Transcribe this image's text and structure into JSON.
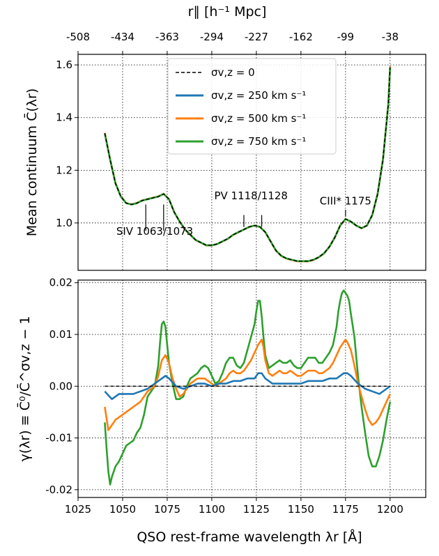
{
  "chart_data": [
    {
      "type": "line",
      "id": "top",
      "ylabel": "Mean continuum C̄(λr)",
      "top_xlabel": "r∥ [h⁻¹ Mpc]",
      "xlim": [
        1025,
        1220
      ],
      "ylim": [
        0.82,
        1.64
      ],
      "yticks": [
        1.0,
        1.2,
        1.4,
        1.6
      ],
      "ytick_labels": [
        "1.0",
        "1.2",
        "1.4",
        "1.6"
      ],
      "top_ticks": [
        1025,
        1050,
        1075,
        1100,
        1125,
        1150,
        1175,
        1200
      ],
      "top_tick_labels": [
        "-508",
        "-434",
        "-363",
        "-294",
        "-227",
        "-162",
        "-99",
        "-38"
      ],
      "grid": true,
      "legend_position": "top-center",
      "legend": [
        {
          "label": "σv,z = 0",
          "color": "#000000",
          "dashed": true
        },
        {
          "label": "σv,z = 250 km s⁻¹",
          "color": "#1f77b4",
          "dashed": false
        },
        {
          "label": "σv,z = 500 km s⁻¹",
          "color": "#ff7f0e",
          "dashed": false
        },
        {
          "label": "σv,z = 750 km s⁻¹",
          "color": "#2ca02c",
          "dashed": false
        }
      ],
      "curve": {
        "x": [
          1040,
          1043,
          1046,
          1049,
          1052,
          1055,
          1058,
          1061,
          1064,
          1067,
          1070,
          1073,
          1076,
          1079,
          1082,
          1085,
          1088,
          1091,
          1094,
          1097,
          1100,
          1103,
          1106,
          1109,
          1112,
          1115,
          1118,
          1121,
          1124,
          1127,
          1130,
          1133,
          1136,
          1139,
          1142,
          1145,
          1148,
          1151,
          1154,
          1157,
          1160,
          1163,
          1166,
          1169,
          1172,
          1175,
          1178,
          1181,
          1184,
          1187,
          1190,
          1193,
          1196,
          1199,
          1200
        ],
        "y": [
          1.34,
          1.24,
          1.15,
          1.1,
          1.075,
          1.07,
          1.075,
          1.085,
          1.09,
          1.095,
          1.1,
          1.11,
          1.09,
          1.04,
          1.005,
          0.975,
          0.955,
          0.935,
          0.925,
          0.915,
          0.915,
          0.92,
          0.93,
          0.94,
          0.955,
          0.965,
          0.975,
          0.985,
          0.99,
          0.985,
          0.965,
          0.93,
          0.895,
          0.875,
          0.865,
          0.86,
          0.855,
          0.855,
          0.855,
          0.86,
          0.87,
          0.885,
          0.91,
          0.945,
          0.99,
          1.015,
          1.005,
          0.99,
          0.98,
          0.99,
          1.03,
          1.11,
          1.24,
          1.45,
          1.59
        ]
      },
      "series": [
        {
          "name": "σv,z = 0",
          "color": "#000000",
          "style": "dashed",
          "scale": 0.0
        },
        {
          "name": "σv,z = 250 km s⁻¹",
          "color": "#1f77b4",
          "style": "solid",
          "scale": 0.003
        },
        {
          "name": "σv,z = 500 km s⁻¹",
          "color": "#ff7f0e",
          "style": "solid",
          "scale": 0.006
        },
        {
          "name": "σv,z = 750 km s⁻¹",
          "color": "#2ca02c",
          "style": "solid",
          "scale": 0.0
        }
      ],
      "annotations": [
        {
          "text": "SIV 1063/1073",
          "x": [
            1063,
            1073
          ],
          "label_x": 1068,
          "label_y": 0.955,
          "line_y": [
            0.97,
            1.07
          ]
        },
        {
          "text": "PV 1118/1128",
          "x": [
            1118,
            1128
          ],
          "label_x": 1122,
          "label_y": 1.09,
          "line_y": [
            0.985,
            1.03
          ]
        },
        {
          "text": "CIII* 1175",
          "x": [
            1175
          ],
          "label_x": 1175,
          "label_y": 1.07,
          "line_y": [
            1.025,
            1.05
          ]
        }
      ]
    },
    {
      "type": "line",
      "id": "bottom",
      "ylabel": "γ(λr) ≡ C̄⁰/C̄^σv,z − 1",
      "xlabel": "QSO rest-frame wavelength λr [Å]",
      "xlim": [
        1025,
        1220
      ],
      "ylim": [
        -0.0215,
        0.0205
      ],
      "xticks": [
        1025,
        1050,
        1075,
        1100,
        1125,
        1150,
        1175,
        1200
      ],
      "xtick_labels": [
        "1025",
        "1050",
        "1075",
        "1100",
        "1125",
        "1150",
        "1175",
        "1200"
      ],
      "yticks": [
        -0.02,
        -0.01,
        0.0,
        0.01,
        0.02
      ],
      "ytick_labels": [
        "-0.02",
        "-0.01",
        "0.00",
        "0.01",
        "0.02"
      ],
      "grid": true,
      "series": [
        {
          "name": "σv,z = 0",
          "color": "#000000",
          "style": "dashed",
          "x": [
            1040,
            1200
          ],
          "y": [
            0.0,
            0.0
          ]
        },
        {
          "name": "σv,z = 750 km s⁻¹",
          "color": "#2ca02c",
          "style": "solid",
          "x": [
            1040,
            1041,
            1042,
            1043,
            1044,
            1046,
            1048,
            1050,
            1052,
            1054,
            1056,
            1058,
            1060,
            1062,
            1064,
            1066,
            1068,
            1070,
            1071,
            1072,
            1073,
            1074,
            1075,
            1076,
            1078,
            1080,
            1082,
            1084,
            1086,
            1088,
            1090,
            1092,
            1094,
            1096,
            1098,
            1100,
            1102,
            1104,
            1106,
            1108,
            1110,
            1112,
            1114,
            1116,
            1118,
            1120,
            1122,
            1124,
            1125,
            1126,
            1127,
            1128,
            1129,
            1130,
            1132,
            1134,
            1136,
            1138,
            1140,
            1142,
            1144,
            1146,
            1148,
            1150,
            1152,
            1154,
            1156,
            1158,
            1160,
            1162,
            1164,
            1166,
            1168,
            1170,
            1171,
            1172,
            1173,
            1174,
            1175,
            1176,
            1177,
            1178,
            1180,
            1182,
            1184,
            1186,
            1188,
            1190,
            1192,
            1194,
            1196,
            1198,
            1200
          ],
          "y": [
            -0.007,
            -0.012,
            -0.0165,
            -0.019,
            -0.0175,
            -0.0155,
            -0.0145,
            -0.013,
            -0.0115,
            -0.011,
            -0.0105,
            -0.009,
            -0.008,
            -0.0055,
            -0.002,
            -0.001,
            0.0,
            0.004,
            0.0085,
            0.012,
            0.0125,
            0.0115,
            0.008,
            0.0045,
            0.0005,
            -0.0025,
            -0.0025,
            -0.002,
            0.0,
            0.0015,
            0.002,
            0.0025,
            0.0035,
            0.004,
            0.0035,
            0.002,
            0.0005,
            0.001,
            0.0025,
            0.0045,
            0.0055,
            0.0055,
            0.004,
            0.0035,
            0.0045,
            0.007,
            0.0095,
            0.012,
            0.0145,
            0.0165,
            0.0165,
            0.0135,
            0.0095,
            0.006,
            0.0035,
            0.004,
            0.0045,
            0.005,
            0.0045,
            0.0045,
            0.005,
            0.004,
            0.0035,
            0.0035,
            0.0045,
            0.0055,
            0.0055,
            0.0055,
            0.0045,
            0.0045,
            0.0055,
            0.0065,
            0.008,
            0.0115,
            0.0145,
            0.0165,
            0.018,
            0.0185,
            0.018,
            0.0175,
            0.0165,
            0.014,
            0.0095,
            0.002,
            -0.004,
            -0.009,
            -0.0135,
            -0.0155,
            -0.0155,
            -0.0135,
            -0.0105,
            -0.0065,
            -0.003
          ]
        },
        {
          "name": "σv,z = 500 km s⁻¹",
          "color": "#ff7f0e",
          "style": "solid",
          "x": [
            1040,
            1042,
            1044,
            1046,
            1048,
            1050,
            1052,
            1054,
            1056,
            1058,
            1060,
            1062,
            1064,
            1066,
            1068,
            1070,
            1072,
            1074,
            1076,
            1078,
            1080,
            1082,
            1084,
            1086,
            1088,
            1090,
            1092,
            1094,
            1096,
            1098,
            1100,
            1102,
            1104,
            1106,
            1108,
            1110,
            1112,
            1114,
            1116,
            1118,
            1120,
            1122,
            1124,
            1126,
            1127,
            1128,
            1129,
            1130,
            1132,
            1134,
            1136,
            1138,
            1140,
            1142,
            1144,
            1146,
            1148,
            1150,
            1152,
            1154,
            1156,
            1158,
            1160,
            1162,
            1164,
            1166,
            1168,
            1170,
            1172,
            1174,
            1175,
            1176,
            1178,
            1180,
            1182,
            1184,
            1186,
            1188,
            1190,
            1192,
            1194,
            1196,
            1198,
            1200
          ],
          "y": [
            -0.004,
            -0.0085,
            -0.0075,
            -0.0065,
            -0.006,
            -0.0055,
            -0.005,
            -0.0045,
            -0.004,
            -0.0035,
            -0.003,
            -0.002,
            -0.001,
            -0.0005,
            0.0,
            0.002,
            0.005,
            0.006,
            0.0045,
            0.0015,
            -0.0005,
            -0.002,
            -0.0015,
            -0.0005,
            0.0005,
            0.001,
            0.0015,
            0.0015,
            0.0015,
            0.001,
            0.0005,
            0.0,
            0.0005,
            0.001,
            0.0015,
            0.0025,
            0.003,
            0.0025,
            0.0025,
            0.003,
            0.004,
            0.005,
            0.0065,
            0.008,
            0.0085,
            0.009,
            0.0075,
            0.005,
            0.0025,
            0.002,
            0.0025,
            0.003,
            0.0025,
            0.0025,
            0.003,
            0.0025,
            0.002,
            0.002,
            0.0025,
            0.003,
            0.003,
            0.003,
            0.0025,
            0.0025,
            0.003,
            0.0035,
            0.0045,
            0.006,
            0.0075,
            0.0085,
            0.009,
            0.0085,
            0.007,
            0.004,
            0.0005,
            -0.002,
            -0.0045,
            -0.0065,
            -0.0075,
            -0.007,
            -0.006,
            -0.0045,
            -0.003,
            -0.0015
          ]
        },
        {
          "name": "σv,z = 250 km s⁻¹",
          "color": "#1f77b4",
          "style": "solid",
          "x": [
            1040,
            1044,
            1048,
            1052,
            1056,
            1060,
            1064,
            1068,
            1072,
            1074,
            1076,
            1080,
            1084,
            1088,
            1092,
            1096,
            1100,
            1104,
            1108,
            1112,
            1116,
            1120,
            1124,
            1126,
            1128,
            1130,
            1134,
            1138,
            1142,
            1146,
            1150,
            1154,
            1158,
            1162,
            1166,
            1170,
            1174,
            1176,
            1178,
            1182,
            1186,
            1190,
            1194,
            1198,
            1200
          ],
          "y": [
            -0.001,
            -0.0025,
            -0.0015,
            -0.0015,
            -0.0015,
            -0.001,
            -0.0005,
            0.0005,
            0.0015,
            0.002,
            0.0015,
            0.0,
            -0.0005,
            0.0,
            0.0005,
            0.0005,
            0.0,
            0.0005,
            0.0005,
            0.001,
            0.001,
            0.0015,
            0.0015,
            0.0025,
            0.0025,
            0.0015,
            0.0005,
            0.0005,
            0.0005,
            0.0005,
            0.0005,
            0.001,
            0.001,
            0.001,
            0.0015,
            0.0015,
            0.0025,
            0.0025,
            0.002,
            0.0005,
            -0.0005,
            -0.001,
            -0.0015,
            -0.0005,
            0.0
          ]
        }
      ]
    }
  ]
}
